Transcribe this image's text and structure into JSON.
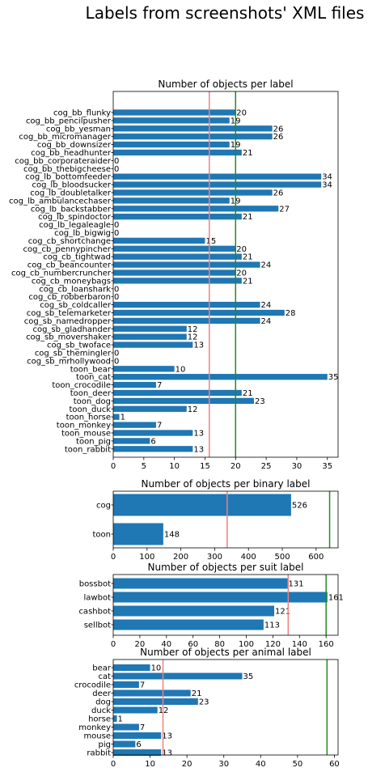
{
  "suptitle": "Labels from screenshots' XML files",
  "colors": {
    "bar": "#1f77b4",
    "mean_line": "#f08080",
    "max_line": "#228b22"
  },
  "chart_data": [
    {
      "type": "bar",
      "orientation": "horizontal",
      "title": "Number of objects per label",
      "categories": [
        "cog_bb_flunky",
        "cog_bb_pencilpusher",
        "cog_bb_yesman",
        "cog_bb_micromanager",
        "cog_bb_downsizer",
        "cog_bb_headhunter",
        "cog_bb_corporateraider",
        "cog_bb_thebigcheese",
        "cog_lb_bottomfeeder",
        "cog_lb_bloodsucker",
        "cog_lb_doubletalker",
        "cog_lb_ambulancechaser",
        "cog_lb_backstabber",
        "cog_lb_spindoctor",
        "cog_lb_legaleagle",
        "cog_lb_bigwig",
        "cog_cb_shortchange",
        "cog_cb_pennypincher",
        "cog_cb_tightwad",
        "cog_cb_beancounter",
        "cog_cb_numbercruncher",
        "cog_cb_moneybags",
        "cog_cb_loanshark",
        "cog_cb_robberbaron",
        "cog_sb_coldcaller",
        "cog_sb_telemarketer",
        "cog_sb_namedropper",
        "cog_sb_gladhander",
        "cog_sb_movershaker",
        "cog_sb_twoface",
        "cog_sb_themingler",
        "cog_sb_mrhollywood",
        "toon_bear",
        "toon_cat",
        "toon_crocodile",
        "toon_deer",
        "toon_dog",
        "toon_duck",
        "toon_horse",
        "toon_monkey",
        "toon_mouse",
        "toon_pig",
        "toon_rabbit"
      ],
      "values": [
        20,
        19,
        26,
        26,
        19,
        21,
        0,
        0,
        34,
        34,
        26,
        19,
        27,
        21,
        0,
        0,
        15,
        20,
        21,
        24,
        20,
        21,
        0,
        0,
        24,
        28,
        24,
        12,
        12,
        13,
        0,
        0,
        10,
        35,
        7,
        21,
        23,
        12,
        1,
        7,
        13,
        6,
        13
      ],
      "xlim": [
        0,
        36.75
      ],
      "xticks": [
        "0",
        "5",
        "10",
        "15",
        "20",
        "25",
        "30",
        "35"
      ],
      "xtick_values": [
        0,
        5,
        10,
        15,
        20,
        25,
        30,
        35
      ],
      "mean_line": 15.7,
      "max_line": 20
    },
    {
      "type": "bar",
      "orientation": "horizontal",
      "title": "Number of objects per binary label",
      "categories": [
        "cog",
        "toon"
      ],
      "values": [
        526,
        148
      ],
      "xlim": [
        0,
        665
      ],
      "xticks": [
        "0",
        "100",
        "200",
        "300",
        "400",
        "500",
        "600"
      ],
      "xtick_values": [
        0,
        100,
        200,
        300,
        400,
        500,
        600
      ],
      "mean_line": 337,
      "max_line": 640
    },
    {
      "type": "bar",
      "orientation": "horizontal",
      "title": "Number of objects per suit label",
      "categories": [
        "bossbot",
        "lawbot",
        "cashbot",
        "sellbot"
      ],
      "values": [
        131,
        161,
        121,
        113
      ],
      "xlim": [
        0,
        169
      ],
      "xticks": [
        "0",
        "20",
        "40",
        "60",
        "80",
        "100",
        "120",
        "140",
        "160"
      ],
      "xtick_values": [
        0,
        20,
        40,
        60,
        80,
        100,
        120,
        140,
        160
      ],
      "mean_line": 131.5,
      "max_line": 160
    },
    {
      "type": "bar",
      "orientation": "horizontal",
      "title": "Number of objects per animal label",
      "categories": [
        "bear",
        "cat",
        "crocodile",
        "deer",
        "dog",
        "duck",
        "horse",
        "monkey",
        "mouse",
        "pig",
        "rabbit"
      ],
      "values": [
        10,
        35,
        7,
        21,
        23,
        12,
        1,
        7,
        13,
        6,
        13
      ],
      "xlim": [
        0,
        61
      ],
      "xticks": [
        "0",
        "10",
        "20",
        "30",
        "40",
        "50",
        "60"
      ],
      "xtick_values": [
        0,
        10,
        20,
        30,
        40,
        50,
        60
      ],
      "mean_line": 13.5,
      "max_line": 58
    }
  ]
}
